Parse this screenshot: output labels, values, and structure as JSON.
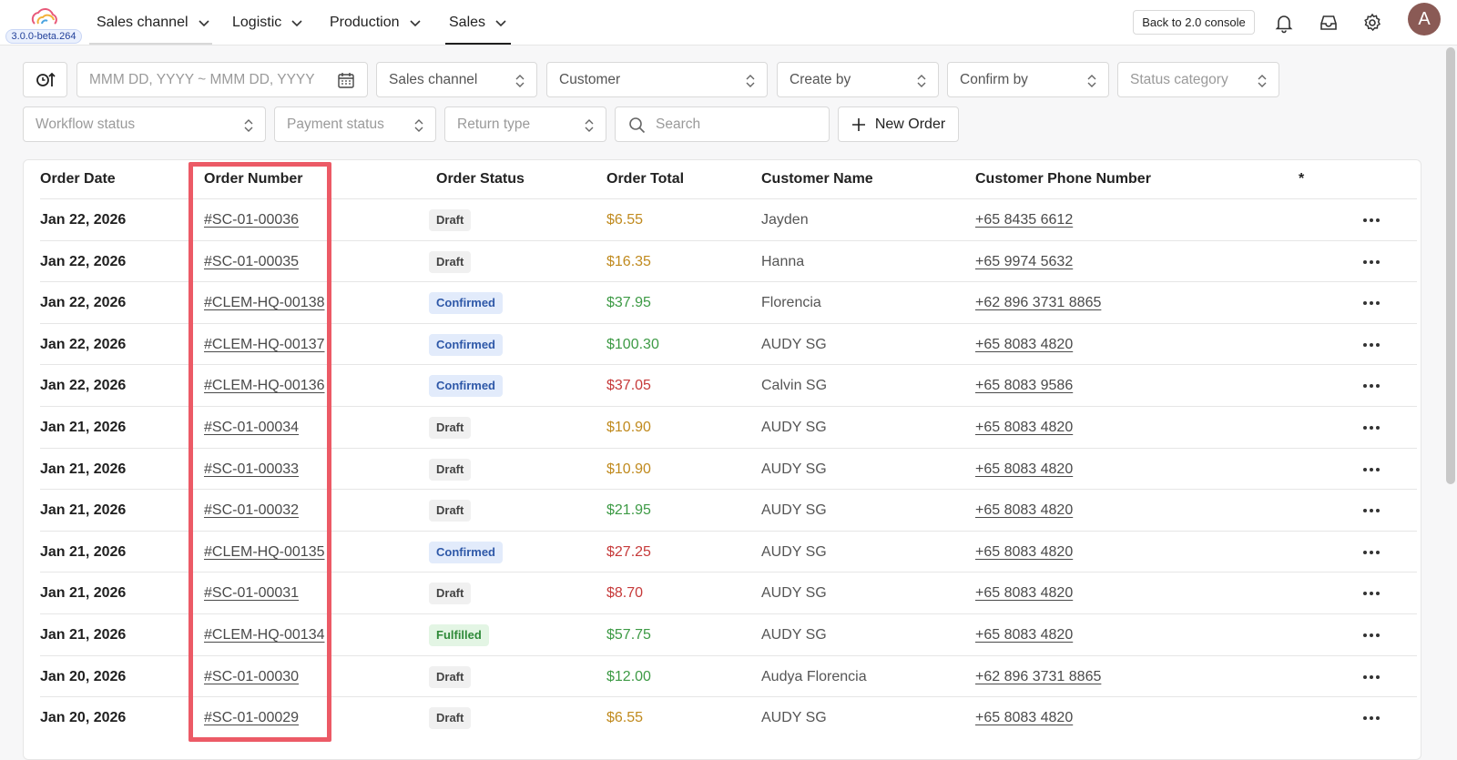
{
  "app": {
    "version": "3.0.0-beta.264",
    "back_button": "Back to 2.0 console",
    "avatar_letter": "A"
  },
  "nav": [
    {
      "label": "Sales channel",
      "icon": "chevron-down-icon"
    },
    {
      "label": "Logistic",
      "icon": "chevron-down-icon"
    },
    {
      "label": "Production",
      "icon": "chevron-down-icon"
    },
    {
      "label": "Sales",
      "icon": "chevron-down-icon",
      "active": true
    }
  ],
  "filters": {
    "date_placeholder": "MMM DD, YYYY ~ MMM DD, YYYY",
    "sales_channel": "Sales channel",
    "customer": "Customer",
    "create_by": "Create by",
    "confirm_by": "Confirm by",
    "status_category": "Status category",
    "workflow_status": "Workflow status",
    "payment_status": "Payment status",
    "return_type": "Return type",
    "search_placeholder": "Search",
    "new_order": "New Order"
  },
  "table": {
    "headers": {
      "order_date": "Order Date",
      "order_number": "Order Number",
      "order_status": "Order Status",
      "order_total": "Order Total",
      "customer_name": "Customer Name",
      "customer_phone": "Customer Phone Number",
      "star": "*"
    },
    "rows": [
      {
        "date": "Jan 22, 2026",
        "number": "#SC-01-00036",
        "status": "Draft",
        "total": "$6.55",
        "total_color": "#c08a1e",
        "name": "Jayden",
        "phone": "+65 8435 6612"
      },
      {
        "date": "Jan 22, 2026",
        "number": "#SC-01-00035",
        "status": "Draft",
        "total": "$16.35",
        "total_color": "#c08a1e",
        "name": "Hanna",
        "phone": "+65 9974 5632"
      },
      {
        "date": "Jan 22, 2026",
        "number": "#CLEM-HQ-00138",
        "status": "Confirmed",
        "total": "$37.95",
        "total_color": "#3d9a45",
        "name": "Florencia",
        "phone": "+62 896 3731 8865"
      },
      {
        "date": "Jan 22, 2026",
        "number": "#CLEM-HQ-00137",
        "status": "Confirmed",
        "total": "$100.30",
        "total_color": "#3d9a45",
        "name": "AUDY SG",
        "phone": "+65 8083 4820"
      },
      {
        "date": "Jan 22, 2026",
        "number": "#CLEM-HQ-00136",
        "status": "Confirmed",
        "total": "$37.05",
        "total_color": "#c63a3a",
        "name": "Calvin SG",
        "phone": "+65 8083 9586"
      },
      {
        "date": "Jan 21, 2026",
        "number": "#SC-01-00034",
        "status": "Draft",
        "total": "$10.90",
        "total_color": "#c08a1e",
        "name": "AUDY SG",
        "phone": "+65 8083 4820"
      },
      {
        "date": "Jan 21, 2026",
        "number": "#SC-01-00033",
        "status": "Draft",
        "total": "$10.90",
        "total_color": "#c08a1e",
        "name": "AUDY SG",
        "phone": "+65 8083 4820"
      },
      {
        "date": "Jan 21, 2026",
        "number": "#SC-01-00032",
        "status": "Draft",
        "total": "$21.95",
        "total_color": "#3d9a45",
        "name": "AUDY SG",
        "phone": "+65 8083 4820"
      },
      {
        "date": "Jan 21, 2026",
        "number": "#CLEM-HQ-00135",
        "status": "Confirmed",
        "total": "$27.25",
        "total_color": "#c63a3a",
        "name": "AUDY SG",
        "phone": "+65 8083 4820"
      },
      {
        "date": "Jan 21, 2026",
        "number": "#SC-01-00031",
        "status": "Draft",
        "total": "$8.70",
        "total_color": "#c63a3a",
        "name": "AUDY SG",
        "phone": "+65 8083 4820"
      },
      {
        "date": "Jan 21, 2026",
        "number": "#CLEM-HQ-00134",
        "status": "Fulfilled",
        "total": "$57.75",
        "total_color": "#3d9a45",
        "name": "AUDY SG",
        "phone": "+65 8083 4820"
      },
      {
        "date": "Jan 20, 2026",
        "number": "#SC-01-00030",
        "status": "Draft",
        "total": "$12.00",
        "total_color": "#3d9a45",
        "name": "Audya Florencia",
        "phone": "+62 896 3731 8865"
      },
      {
        "date": "Jan 20, 2026",
        "number": "#SC-01-00029",
        "status": "Draft",
        "total": "$6.55",
        "total_color": "#c08a1e",
        "name": "AUDY SG",
        "phone": "+65 8083 4820"
      }
    ]
  },
  "colors": {
    "highlight_border": "#ec5a66",
    "draft_bg": "#f0f0f0",
    "confirmed_bg": "#e2ebfb",
    "fulfilled_bg": "#e3f5e4"
  }
}
